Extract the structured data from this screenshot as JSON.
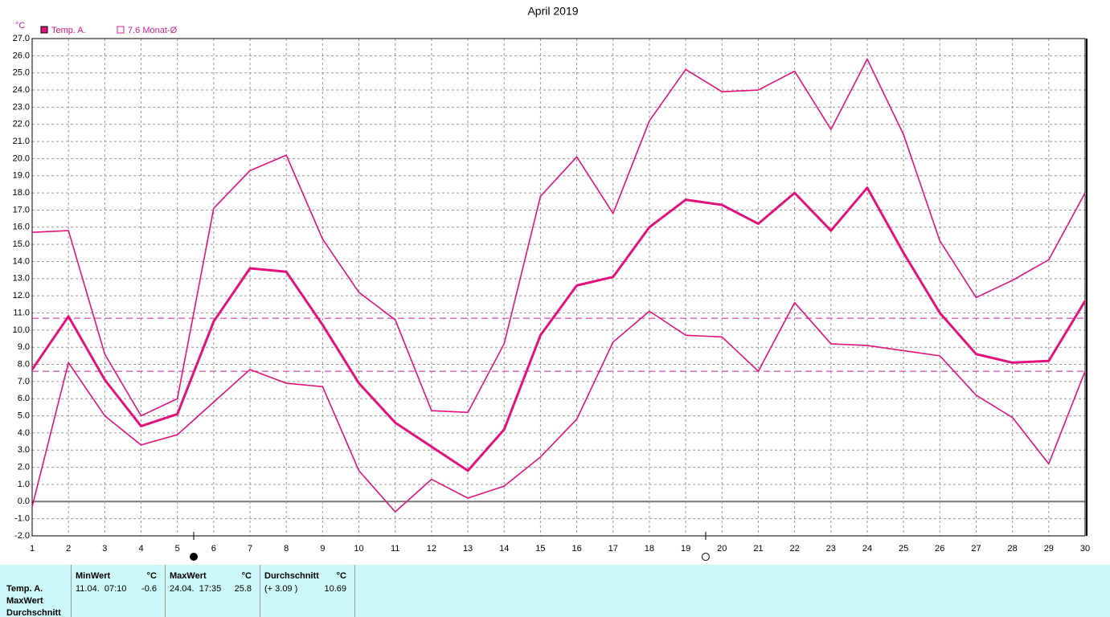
{
  "chart_data": {
    "type": "line",
    "title": "April 2019",
    "y_unit": "°C",
    "x": [
      1,
      2,
      3,
      4,
      5,
      6,
      7,
      8,
      9,
      10,
      11,
      12,
      13,
      14,
      15,
      16,
      17,
      18,
      19,
      20,
      21,
      22,
      23,
      24,
      25,
      26,
      27,
      28,
      29,
      30
    ],
    "xlim": [
      1,
      30
    ],
    "xticks": [
      1,
      2,
      3,
      4,
      5,
      6,
      7,
      8,
      9,
      10,
      11,
      12,
      13,
      14,
      15,
      16,
      17,
      18,
      19,
      20,
      21,
      22,
      23,
      24,
      25,
      26,
      27,
      28,
      29,
      30
    ],
    "ylim": [
      -2,
      27
    ],
    "yticks": [
      {
        "value": -2,
        "label": "-2.0"
      },
      {
        "value": -1,
        "label": "-1.0"
      },
      {
        "value": 0,
        "label": "0.0"
      },
      {
        "value": 1,
        "label": "1.0"
      },
      {
        "value": 2,
        "label": "2.0"
      },
      {
        "value": 3,
        "label": "3.0"
      },
      {
        "value": 4,
        "label": "4.0"
      },
      {
        "value": 5,
        "label": "5.0"
      },
      {
        "value": 6,
        "label": "6.0"
      },
      {
        "value": 7,
        "label": "7.0"
      },
      {
        "value": 8,
        "label": "8.0"
      },
      {
        "value": 9,
        "label": "9.0"
      },
      {
        "value": 10,
        "label": "10.0"
      },
      {
        "value": 11,
        "label": "11.0"
      },
      {
        "value": 12,
        "label": "12.0"
      },
      {
        "value": 13,
        "label": "13.0"
      },
      {
        "value": 14,
        "label": "14.0"
      },
      {
        "value": 15,
        "label": "15.0"
      },
      {
        "value": 16,
        "label": "16.0"
      },
      {
        "value": 17,
        "label": "17.0"
      },
      {
        "value": 18,
        "label": "18.0"
      },
      {
        "value": 19,
        "label": "19.0"
      },
      {
        "value": 20,
        "label": "20.0"
      },
      {
        "value": 21,
        "label": "21.0"
      },
      {
        "value": 22,
        "label": "22.0"
      },
      {
        "value": 23,
        "label": "23.0"
      },
      {
        "value": 24,
        "label": "24.0"
      },
      {
        "value": 25,
        "label": "25.0"
      },
      {
        "value": 26,
        "label": "26.0"
      },
      {
        "value": 27,
        "label": "27.0"
      }
    ],
    "grid": true,
    "series": [
      {
        "name": "Temp. A.",
        "color": "#e2127a",
        "width": 3,
        "values": [
          7.7,
          10.8,
          7.1,
          4.4,
          5.1,
          10.5,
          13.6,
          13.4,
          10.3,
          6.9,
          4.6,
          3.2,
          1.8,
          4.2,
          9.7,
          12.6,
          13.1,
          16.0,
          17.6,
          17.3,
          16.2,
          18.0,
          15.8,
          18.3,
          14.5,
          11.0,
          8.6,
          8.1,
          8.2,
          11.7
        ]
      },
      {
        "color": "#e2127a",
        "width": 1.6,
        "values": [
          15.7,
          15.8,
          8.6,
          5.0,
          6.0,
          17.1,
          19.3,
          20.2,
          15.3,
          12.2,
          10.6,
          5.3,
          5.2,
          9.2,
          17.8,
          20.1,
          16.8,
          22.2,
          25.2,
          23.9,
          24.0,
          25.1,
          21.7,
          25.8,
          21.4,
          15.2,
          11.9,
          12.9,
          14.1,
          18.0
        ]
      },
      {
        "color": "#e2127a",
        "width": 1.6,
        "values": [
          -0.3,
          8.1,
          5.0,
          3.3,
          3.9,
          5.8,
          7.7,
          6.9,
          6.7,
          1.8,
          -0.6,
          1.3,
          0.2,
          0.9,
          2.6,
          4.8,
          9.3,
          11.1,
          9.7,
          9.6,
          7.6,
          11.6,
          9.2,
          9.1,
          8.8,
          8.5,
          6.2,
          4.9,
          2.2,
          7.6
        ]
      }
    ],
    "reference_line": {
      "value": 7.6,
      "label": "7.6 Monat-Ø",
      "color": "#cc2299"
    },
    "mean_line_color": "#cc2299",
    "moon_phases": [
      {
        "x": 5.45,
        "phase": "new"
      },
      {
        "x": 19.55,
        "phase": "full"
      }
    ]
  },
  "table": {
    "row_labels": [
      "Temp. A.",
      "MaxWert",
      "Durchschnitt"
    ],
    "columns": [
      {
        "title": "MinWert",
        "unit": "°C",
        "time": "11.04.  07:10",
        "value": "-0.6"
      },
      {
        "title": "MaxWert",
        "unit": "°C",
        "time": "24.04.  17:35",
        "value": "25.8"
      },
      {
        "title": "Durchschnitt",
        "unit": "°C",
        "time": "(+ 3.09 )",
        "value": "10.69"
      }
    ],
    "mean_value": 10.69
  }
}
